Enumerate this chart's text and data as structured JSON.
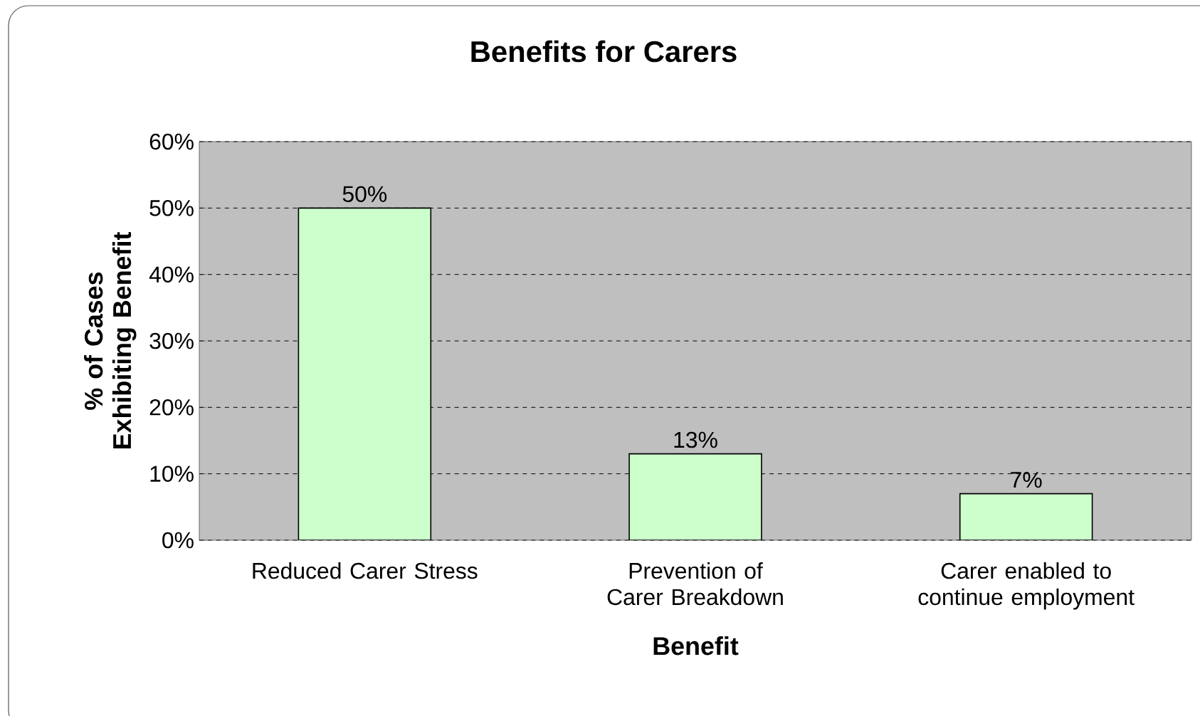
{
  "chart_data": {
    "type": "bar",
    "title": "Benefits for Carers",
    "xlabel": "Benefit",
    "ylabel": "% of Cases Exhibiting Benefit",
    "categories": [
      "Reduced Carer Stress",
      "Prevention of Carer Breakdown",
      "Carer enabled to continue employment"
    ],
    "values": [
      50,
      13,
      7
    ],
    "value_labels": [
      "50%",
      "13%",
      "7%"
    ],
    "color": "#ccffcc",
    "ylim": [
      0,
      60
    ],
    "yticks": [
      {
        "value": 0,
        "label": "0%"
      },
      {
        "value": 10,
        "label": "10%"
      },
      {
        "value": 20,
        "label": "20%"
      },
      {
        "value": 30,
        "label": "30%"
      },
      {
        "value": 40,
        "label": "40%"
      },
      {
        "value": 50,
        "label": "50%"
      },
      {
        "value": 60,
        "label": "60%"
      }
    ],
    "grid": "y"
  }
}
